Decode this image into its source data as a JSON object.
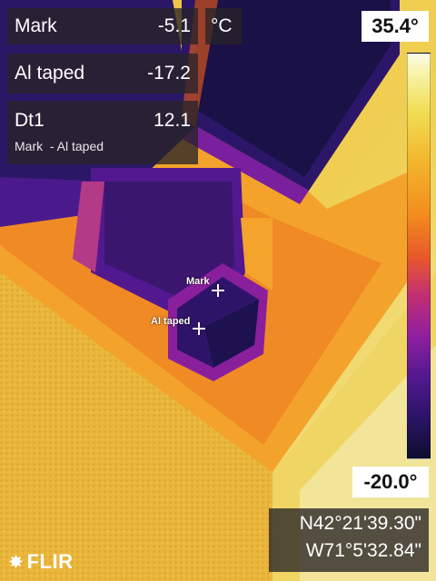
{
  "measurements": {
    "mark": {
      "label": "Mark",
      "value": "-5.1",
      "unit": "°C"
    },
    "al_taped": {
      "label": "Al taped",
      "value": "-17.2"
    },
    "dt1": {
      "label": "Dt1",
      "value": "12.1",
      "formula": "Mark  - Al taped"
    }
  },
  "scale": {
    "max": "35.4°",
    "min": "-20.0°"
  },
  "spots": {
    "mark": "Mark",
    "al_taped": "Al taped"
  },
  "gps": {
    "lat": "N42°21'39.30\"",
    "lon": "W71°5'32.84\""
  },
  "brand": "FLIR",
  "palette": {
    "hot": "#f7f3a8",
    "warm": "#f38b1e",
    "cool": "#8e1fa0",
    "cold": "#0d0e2e"
  }
}
